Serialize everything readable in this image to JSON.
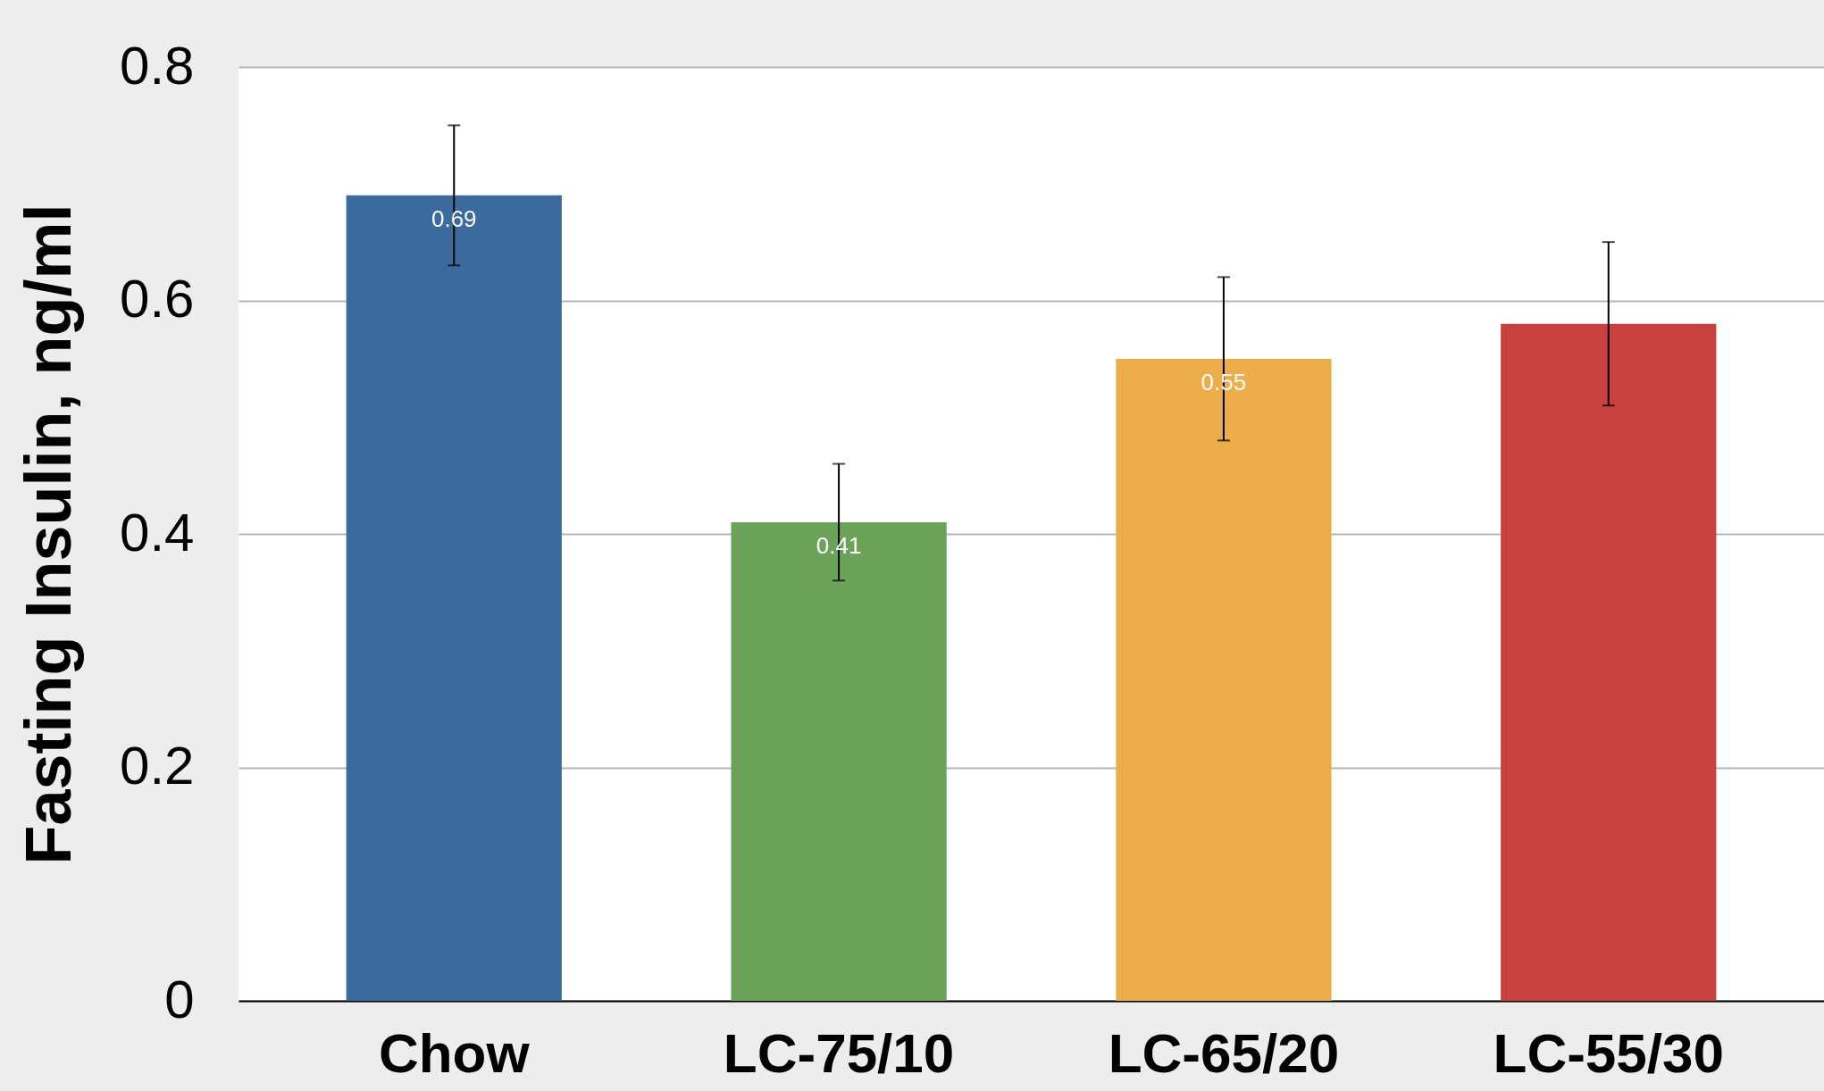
{
  "chart_data": {
    "type": "bar",
    "ylabel": "Fasting Insulin, ng/ml",
    "categories": [
      "Chow",
      "LC-75/10",
      "LC-65/20",
      "LC-55/30"
    ],
    "values": [
      0.69,
      0.41,
      0.55,
      0.58
    ],
    "colors": [
      "#3b6b9c",
      "#6ca35a",
      "#ebae4b",
      "#c9413e"
    ],
    "errors": [
      [
        0.63,
        0.75
      ],
      [
        0.36,
        0.46
      ],
      [
        0.48,
        0.62
      ],
      [
        0.51,
        0.65
      ]
    ],
    "value_labels": [
      "0.69",
      "0.41",
      "0.55",
      null
    ],
    "ylim": [
      0,
      0.8
    ],
    "yticks": [
      0,
      0.2,
      0.4,
      0.6,
      0.8
    ],
    "grid": "y"
  }
}
